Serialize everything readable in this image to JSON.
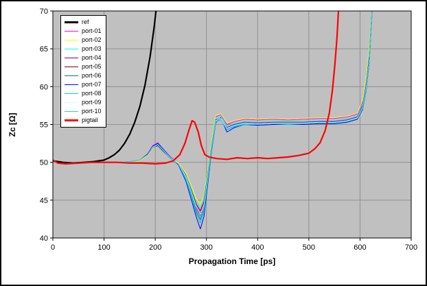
{
  "chart_data": {
    "type": "line",
    "title": "",
    "xlabel": "Propagation Time [ps]",
    "ylabel": "Zc [Ω]",
    "xlim": [
      0,
      700
    ],
    "ylim": [
      40,
      70
    ],
    "xticks": [
      0,
      100,
      200,
      300,
      400,
      500,
      600,
      700
    ],
    "yticks": [
      40,
      45,
      50,
      55,
      60,
      65,
      70
    ],
    "grid": true,
    "plot_bg": "#c0c0c0",
    "grid_color": "#8f8f8f",
    "axis_color": "#000000",
    "legend": {
      "position": "top-left",
      "border": "#000000",
      "bg": "#ffffff"
    },
    "port_x": [
      0,
      25,
      50,
      75,
      100,
      125,
      150,
      170,
      185,
      195,
      205,
      215,
      230,
      245,
      260,
      270,
      280,
      288,
      295,
      302,
      310,
      318,
      328,
      340,
      355,
      375,
      400,
      430,
      460,
      490,
      520,
      550,
      575,
      595,
      605,
      612,
      618,
      624
    ],
    "series": [
      {
        "name": "ref",
        "color": "#000000",
        "width": 2.2,
        "points": [
          [
            0,
            50.2
          ],
          [
            20,
            50.0
          ],
          [
            40,
            49.9
          ],
          [
            60,
            50.0
          ],
          [
            80,
            50.1
          ],
          [
            100,
            50.3
          ],
          [
            110,
            50.6
          ],
          [
            120,
            51.0
          ],
          [
            130,
            51.6
          ],
          [
            140,
            52.5
          ],
          [
            150,
            53.7
          ],
          [
            160,
            55.3
          ],
          [
            170,
            57.4
          ],
          [
            180,
            60.2
          ],
          [
            190,
            64.0
          ],
          [
            198,
            68.0
          ],
          [
            204,
            71.5
          ]
        ]
      },
      {
        "name": "port-01",
        "color": "#FF00FF",
        "width": 1,
        "y": [
          50.1,
          50.0,
          50.0,
          50.0,
          50.0,
          50.0,
          50.1,
          50.3,
          51.1,
          52.2,
          52.6,
          51.8,
          50.7,
          50.0,
          48.3,
          46.5,
          44.3,
          43.3,
          44.6,
          48.0,
          52.5,
          56.0,
          56.3,
          55.0,
          55.4,
          55.7,
          55.6,
          55.7,
          55.6,
          55.7,
          55.8,
          55.8,
          56.0,
          56.4,
          58.0,
          61.0,
          65.0,
          71.0
        ]
      },
      {
        "name": "port-02",
        "color": "#FFFF00",
        "width": 1,
        "y": [
          50.1,
          50.0,
          50.0,
          50.0,
          50.0,
          50.0,
          50.1,
          50.2,
          50.9,
          51.8,
          52.2,
          51.6,
          50.6,
          50.0,
          48.6,
          47.0,
          45.2,
          44.5,
          45.6,
          48.6,
          52.8,
          56.2,
          56.4,
          55.2,
          55.5,
          55.8,
          55.7,
          55.8,
          55.7,
          55.8,
          55.9,
          55.9,
          56.1,
          56.5,
          58.2,
          61.3,
          65.3,
          71.0
        ]
      },
      {
        "name": "port-03",
        "color": "#00FFFF",
        "width": 1,
        "y": [
          50.1,
          50.0,
          50.0,
          50.0,
          50.0,
          50.0,
          50.1,
          50.3,
          51.0,
          52.0,
          52.4,
          51.7,
          50.6,
          49.9,
          48.3,
          46.6,
          44.7,
          44.0,
          45.2,
          48.3,
          52.4,
          55.8,
          56.0,
          54.8,
          55.1,
          55.4,
          55.3,
          55.4,
          55.4,
          55.4,
          55.5,
          55.5,
          55.7,
          56.1,
          57.7,
          60.5,
          64.5,
          70.8
        ]
      },
      {
        "name": "port-04",
        "color": "#800080",
        "width": 1,
        "y": [
          50.1,
          50.0,
          50.0,
          50.0,
          50.0,
          50.0,
          50.1,
          50.3,
          51.0,
          52.0,
          52.3,
          51.6,
          50.5,
          49.8,
          48.0,
          46.1,
          44.0,
          43.0,
          44.3,
          47.7,
          52.0,
          55.6,
          55.8,
          54.6,
          55.0,
          55.3,
          55.2,
          55.3,
          55.3,
          55.3,
          55.4,
          55.4,
          55.6,
          56.0,
          57.5,
          60.2,
          64.0,
          70.6
        ]
      },
      {
        "name": "port-05",
        "color": "#800000",
        "width": 1,
        "y": [
          50.1,
          50.0,
          50.0,
          50.0,
          50.0,
          50.0,
          50.1,
          50.3,
          51.0,
          51.9,
          52.2,
          51.5,
          50.5,
          49.9,
          48.2,
          46.4,
          44.5,
          43.6,
          44.8,
          48.0,
          52.1,
          55.5,
          55.7,
          54.5,
          54.9,
          55.2,
          55.1,
          55.2,
          55.2,
          55.2,
          55.3,
          55.3,
          55.5,
          55.9,
          57.4,
          60.0,
          63.8,
          70.5
        ]
      },
      {
        "name": "port-06",
        "color": "#008080",
        "width": 1,
        "y": [
          50.1,
          50.0,
          50.0,
          50.0,
          50.0,
          50.0,
          50.1,
          50.3,
          51.0,
          51.9,
          52.3,
          51.6,
          50.5,
          49.8,
          47.8,
          45.8,
          43.5,
          42.4,
          43.8,
          47.4,
          51.8,
          55.4,
          55.6,
          54.4,
          54.8,
          55.1,
          55.0,
          55.1,
          55.1,
          55.1,
          55.2,
          55.2,
          55.4,
          55.8,
          57.2,
          59.8,
          63.5,
          70.3
        ]
      },
      {
        "name": "port-07",
        "color": "#0000FF",
        "width": 1,
        "y": [
          50.1,
          50.0,
          50.0,
          50.0,
          50.0,
          50.0,
          50.1,
          50.3,
          51.1,
          52.1,
          52.5,
          51.8,
          50.6,
          49.7,
          47.5,
          45.2,
          42.8,
          41.2,
          42.8,
          46.8,
          51.5,
          55.2,
          55.9,
          54.0,
          54.6,
          55.0,
          54.9,
          55.0,
          55.0,
          55.0,
          55.1,
          55.1,
          55.3,
          55.7,
          57.0,
          59.5,
          63.2,
          70.2
        ]
      },
      {
        "name": "port-08",
        "color": "#00CCFF",
        "width": 1,
        "y": [
          50.1,
          50.0,
          50.0,
          50.0,
          50.0,
          50.0,
          50.1,
          50.3,
          51.0,
          52.0,
          52.4,
          51.7,
          50.6,
          49.8,
          47.7,
          45.6,
          43.2,
          42.0,
          43.4,
          47.2,
          51.7,
          55.3,
          55.7,
          54.3,
          54.7,
          55.0,
          55.0,
          55.1,
          55.0,
          55.1,
          55.2,
          55.2,
          55.4,
          55.8,
          57.1,
          59.6,
          63.4,
          70.3
        ]
      },
      {
        "name": "port-09",
        "color": "#CCFFFF",
        "width": 1,
        "y": [
          50.1,
          50.0,
          50.0,
          50.0,
          50.0,
          50.0,
          50.1,
          50.3,
          51.0,
          52.0,
          52.3,
          51.6,
          50.5,
          49.9,
          48.1,
          46.2,
          44.2,
          43.1,
          44.4,
          47.8,
          52.0,
          55.5,
          55.8,
          54.5,
          54.9,
          55.2,
          55.1,
          55.2,
          55.2,
          55.2,
          55.3,
          55.3,
          55.5,
          55.9,
          57.3,
          59.9,
          63.6,
          70.4
        ]
      },
      {
        "name": "port-10",
        "color": "#33CCCC",
        "width": 1,
        "y": [
          50.1,
          50.0,
          50.0,
          50.0,
          50.0,
          50.0,
          50.1,
          50.3,
          51.0,
          51.9,
          52.3,
          51.6,
          50.5,
          49.8,
          47.9,
          46.0,
          43.8,
          42.7,
          44.0,
          47.6,
          51.9,
          55.4,
          55.6,
          54.4,
          54.8,
          55.1,
          55.0,
          55.1,
          55.1,
          55.1,
          55.2,
          55.2,
          55.4,
          55.8,
          57.2,
          59.7,
          63.5,
          70.3
        ]
      },
      {
        "name": "pigtail",
        "color": "#FF0000",
        "width": 2.2,
        "points": [
          [
            0,
            50.3
          ],
          [
            10,
            49.9
          ],
          [
            25,
            49.8
          ],
          [
            50,
            49.9
          ],
          [
            75,
            50.0
          ],
          [
            100,
            50.0
          ],
          [
            125,
            50.0
          ],
          [
            150,
            49.9
          ],
          [
            175,
            49.9
          ],
          [
            200,
            49.8
          ],
          [
            220,
            49.9
          ],
          [
            235,
            50.2
          ],
          [
            248,
            51.0
          ],
          [
            258,
            52.5
          ],
          [
            266,
            54.3
          ],
          [
            272,
            55.5
          ],
          [
            277,
            55.3
          ],
          [
            284,
            54.0
          ],
          [
            290,
            52.2
          ],
          [
            297,
            51.0
          ],
          [
            305,
            50.7
          ],
          [
            320,
            50.5
          ],
          [
            340,
            50.4
          ],
          [
            360,
            50.6
          ],
          [
            380,
            50.5
          ],
          [
            400,
            50.6
          ],
          [
            420,
            50.5
          ],
          [
            440,
            50.6
          ],
          [
            460,
            50.7
          ],
          [
            480,
            50.9
          ],
          [
            500,
            51.2
          ],
          [
            512,
            51.8
          ],
          [
            522,
            52.6
          ],
          [
            532,
            54.2
          ],
          [
            540,
            56.5
          ],
          [
            546,
            59.5
          ],
          [
            551,
            63.0
          ],
          [
            555,
            66.5
          ],
          [
            559,
            71.5
          ]
        ]
      }
    ]
  }
}
